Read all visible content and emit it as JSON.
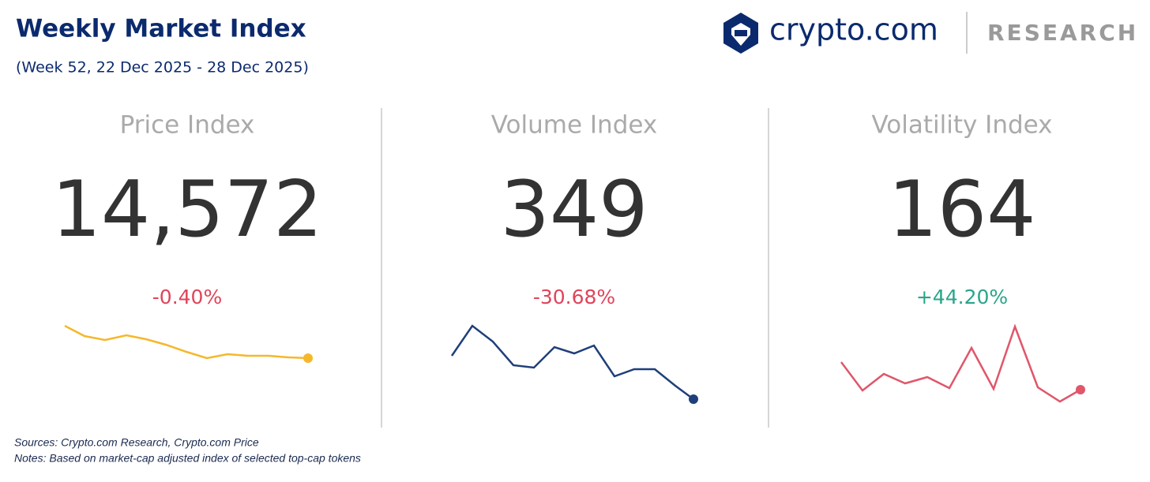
{
  "header": {
    "title": "Weekly Market Index",
    "subtitle": "(Week 52, 22 Dec 2025 - 28 Dec 2025)",
    "brand": "crypto.com",
    "tag": "RESEARCH"
  },
  "cards": [
    {
      "title": "Price Index",
      "value": "14,572",
      "change": "-0.40%"
    },
    {
      "title": "Volume Index",
      "value": "349",
      "change": "-30.68%"
    },
    {
      "title": "Volatility Index",
      "value": "164",
      "change": "+44.20%"
    }
  ],
  "footer": {
    "sources": "Sources: Crypto.com Research,  Crypto.com Price",
    "notes": "Notes: Based on market-cap adjusted index of selected top-cap tokens"
  }
}
